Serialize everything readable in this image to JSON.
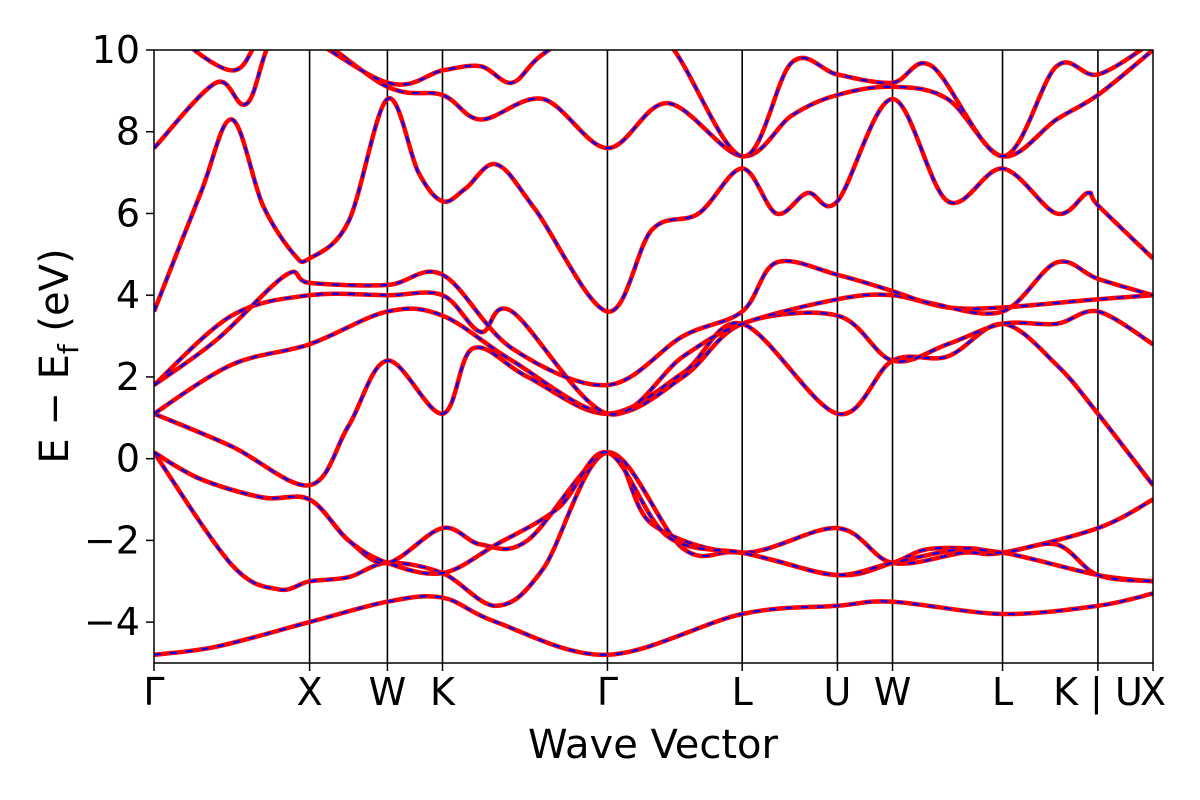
{
  "chart_data": {
    "type": "line",
    "title": "",
    "xlabel": "Wave Vector",
    "ylabel": {
      "main": "E − E",
      "sub": "f",
      "unit": " (eV)"
    },
    "ylim": [
      -5,
      10
    ],
    "yticks": [
      -4,
      -2,
      0,
      2,
      4,
      6,
      8,
      10
    ],
    "ytick_labels": [
      "−4",
      "−2",
      "0",
      "2",
      "4",
      "6",
      "8",
      "10"
    ],
    "grid": false,
    "legend": "none",
    "colors": {
      "solid": "#ff0000",
      "dashed": "#0000ff",
      "frame": "#000000"
    },
    "k_points": [
      {
        "label": "Γ",
        "x": 0.0
      },
      {
        "label": "X",
        "x": 1.0
      },
      {
        "label": "W",
        "x": 1.5
      },
      {
        "label": "K",
        "x": 1.854
      },
      {
        "label": "Γ",
        "x": 2.914
      },
      {
        "label": "L",
        "x": 3.78
      },
      {
        "label": "U",
        "x": 4.392
      },
      {
        "label": "W",
        "x": 4.746
      },
      {
        "label": "L",
        "x": 5.453
      },
      {
        "label": "K | U",
        "x": 6.066
      },
      {
        "label": "X",
        "x": 6.42
      }
    ],
    "series": [
      {
        "points": [
          [
            0,
            -4.8
          ],
          [
            0.4,
            -4.6
          ],
          [
            1.0,
            -4.0
          ],
          [
            1.5,
            -3.5
          ],
          [
            1.854,
            -3.4
          ],
          [
            2.2,
            -4.0
          ],
          [
            2.914,
            -4.8
          ],
          [
            3.78,
            -3.8
          ],
          [
            4.392,
            -3.6
          ],
          [
            4.746,
            -3.5
          ],
          [
            5.453,
            -3.8
          ],
          [
            6.066,
            -3.6
          ],
          [
            6.42,
            -3.3
          ]
        ]
      },
      {
        "points": [
          [
            0,
            0.15
          ],
          [
            0.5,
            -2.6
          ],
          [
            0.8,
            -3.2
          ],
          [
            1.0,
            -3.0
          ],
          [
            1.25,
            -2.9
          ],
          [
            1.5,
            -2.55
          ],
          [
            1.854,
            -2.8
          ],
          [
            2.2,
            -3.6
          ],
          [
            2.5,
            -2.7
          ],
          [
            2.914,
            0.15
          ],
          [
            3.4,
            -2.2
          ],
          [
            3.78,
            -2.3
          ],
          [
            4.392,
            -2.85
          ],
          [
            4.746,
            -2.55
          ],
          [
            5.0,
            -2.2
          ],
          [
            5.453,
            -2.3
          ],
          [
            6.066,
            -2.85
          ],
          [
            6.42,
            -3.0
          ]
        ]
      },
      {
        "points": [
          [
            0,
            0.15
          ],
          [
            0.3,
            -0.5
          ],
          [
            0.7,
            -0.95
          ],
          [
            1.0,
            -1.0
          ],
          [
            1.25,
            -2.0
          ],
          [
            1.5,
            -2.55
          ],
          [
            1.854,
            -1.7
          ],
          [
            2.1,
            -2.1
          ],
          [
            2.4,
            -2.0
          ],
          [
            2.914,
            0.15
          ],
          [
            3.2,
            -1.6
          ],
          [
            3.78,
            -2.3
          ],
          [
            4.392,
            -1.7
          ],
          [
            4.746,
            -2.55
          ],
          [
            5.2,
            -2.3
          ],
          [
            5.453,
            -2.3
          ],
          [
            6.066,
            -1.7
          ],
          [
            6.42,
            -1.0
          ]
        ]
      },
      {
        "points": [
          [
            0,
            0.15
          ],
          [
            0.3,
            -0.5
          ],
          [
            0.7,
            -0.95
          ],
          [
            1.0,
            -1.0
          ],
          [
            1.25,
            -2.0
          ],
          [
            1.5,
            -2.55
          ],
          [
            1.854,
            -2.8
          ],
          [
            2.2,
            -2.1
          ],
          [
            2.6,
            -1.2
          ],
          [
            2.914,
            0.15
          ],
          [
            3.3,
            -1.9
          ],
          [
            3.78,
            -2.3
          ],
          [
            4.0,
            -2.5
          ],
          [
            4.392,
            -2.85
          ],
          [
            4.746,
            -2.55
          ],
          [
            5.2,
            -2.2
          ],
          [
            5.453,
            -2.3
          ],
          [
            5.8,
            -2.1
          ],
          [
            6.066,
            -2.85
          ],
          [
            6.42,
            -3.0
          ]
        ]
      },
      {
        "points": [
          [
            0,
            1.1
          ],
          [
            0.5,
            0.3
          ],
          [
            1.0,
            -0.65
          ],
          [
            1.25,
            0.8
          ],
          [
            1.5,
            2.4
          ],
          [
            1.854,
            1.1
          ],
          [
            2.05,
            2.7
          ],
          [
            2.4,
            2.0
          ],
          [
            2.914,
            1.1
          ],
          [
            3.4,
            2.1
          ],
          [
            3.78,
            3.3
          ],
          [
            4.392,
            1.1
          ],
          [
            4.746,
            2.4
          ],
          [
            5.1,
            2.5
          ],
          [
            5.453,
            3.3
          ],
          [
            5.8,
            2.3
          ],
          [
            6.066,
            1.1
          ],
          [
            6.42,
            -0.65
          ]
        ]
      },
      {
        "points": [
          [
            0,
            1.1
          ],
          [
            0.5,
            2.3
          ],
          [
            1.0,
            2.8
          ],
          [
            1.5,
            3.6
          ],
          [
            1.854,
            3.5
          ],
          [
            2.3,
            2.4
          ],
          [
            2.914,
            1.1
          ],
          [
            3.4,
            2.0
          ],
          [
            3.78,
            3.3
          ],
          [
            4.392,
            3.5
          ],
          [
            4.746,
            2.4
          ],
          [
            5.1,
            2.8
          ],
          [
            5.453,
            3.3
          ],
          [
            5.8,
            3.3
          ],
          [
            6.066,
            3.6
          ],
          [
            6.42,
            2.8
          ]
        ]
      },
      {
        "points": [
          [
            0,
            1.8
          ],
          [
            0.5,
            3.5
          ],
          [
            1.0,
            4.0
          ],
          [
            1.5,
            4.0
          ],
          [
            1.854,
            4.0
          ],
          [
            2.1,
            3.1
          ],
          [
            2.3,
            3.6
          ],
          [
            2.914,
            1.1
          ],
          [
            3.4,
            2.5
          ],
          [
            3.78,
            3.3
          ],
          [
            4.392,
            3.9
          ],
          [
            4.746,
            4.0
          ],
          [
            5.1,
            3.7
          ],
          [
            5.453,
            3.7
          ],
          [
            6.066,
            3.9
          ],
          [
            6.42,
            4.0
          ]
        ]
      },
      {
        "points": [
          [
            0,
            1.8
          ],
          [
            0.4,
            2.9
          ],
          [
            0.85,
            4.5
          ],
          [
            1.0,
            4.3
          ],
          [
            1.5,
            4.25
          ],
          [
            1.854,
            4.5
          ],
          [
            2.3,
            2.7
          ],
          [
            2.914,
            1.8
          ],
          [
            3.4,
            3.0
          ],
          [
            3.78,
            3.6
          ],
          [
            4.0,
            4.8
          ],
          [
            4.392,
            4.5
          ],
          [
            4.746,
            4.1
          ],
          [
            5.0,
            3.8
          ],
          [
            5.453,
            3.6
          ],
          [
            5.8,
            4.8
          ],
          [
            6.066,
            4.4
          ],
          [
            6.42,
            4.0
          ]
        ]
      },
      {
        "points": [
          [
            0,
            3.6
          ],
          [
            0.3,
            6.5
          ],
          [
            0.5,
            8.3
          ],
          [
            0.7,
            6.2
          ],
          [
            0.9,
            5.0
          ],
          [
            1.0,
            4.9
          ],
          [
            1.25,
            5.8
          ],
          [
            1.5,
            8.8
          ],
          [
            1.7,
            7.0
          ],
          [
            1.854,
            6.3
          ],
          [
            2.0,
            6.6
          ],
          [
            2.2,
            7.2
          ],
          [
            2.45,
            6.1
          ],
          [
            2.914,
            3.6
          ],
          [
            3.2,
            5.6
          ],
          [
            3.5,
            6.0
          ],
          [
            3.78,
            7.1
          ],
          [
            4.0,
            6.0
          ],
          [
            4.2,
            6.5
          ],
          [
            4.392,
            6.3
          ],
          [
            4.746,
            8.8
          ],
          [
            5.1,
            6.3
          ],
          [
            5.453,
            7.1
          ],
          [
            5.8,
            6.0
          ],
          [
            6.0,
            6.5
          ],
          [
            6.066,
            6.2
          ],
          [
            6.42,
            4.9
          ]
        ]
      },
      {
        "points": [
          [
            0,
            7.6
          ],
          [
            0.4,
            9.2
          ],
          [
            0.6,
            8.7
          ],
          [
            0.85,
            10.6
          ],
          [
            1.5,
            9.1
          ],
          [
            1.854,
            8.9
          ],
          [
            2.1,
            8.3
          ],
          [
            2.5,
            8.8
          ],
          [
            2.914,
            7.6
          ],
          [
            3.3,
            8.7
          ],
          [
            3.78,
            7.4
          ],
          [
            4.1,
            8.4
          ],
          [
            4.392,
            8.9
          ],
          [
            4.746,
            9.1
          ],
          [
            5.1,
            8.8
          ],
          [
            5.453,
            7.4
          ],
          [
            5.8,
            8.3
          ],
          [
            6.066,
            8.9
          ],
          [
            6.42,
            10.0
          ]
        ]
      },
      {
        "points": [
          [
            0,
            10.8
          ],
          [
            0.5,
            9.5
          ],
          [
            0.8,
            10.6
          ],
          [
            1.5,
            9.2
          ],
          [
            1.854,
            9.5
          ],
          [
            2.1,
            9.6
          ],
          [
            2.3,
            9.2
          ],
          [
            2.5,
            9.9
          ],
          [
            2.914,
            10.8
          ],
          [
            3.3,
            10.2
          ],
          [
            3.78,
            7.4
          ],
          [
            4.1,
            9.7
          ],
          [
            4.392,
            9.4
          ],
          [
            4.746,
            9.2
          ],
          [
            5.0,
            9.6
          ],
          [
            5.453,
            7.4
          ],
          [
            5.8,
            9.6
          ],
          [
            6.066,
            9.4
          ],
          [
            6.42,
            10.2
          ]
        ]
      }
    ]
  }
}
